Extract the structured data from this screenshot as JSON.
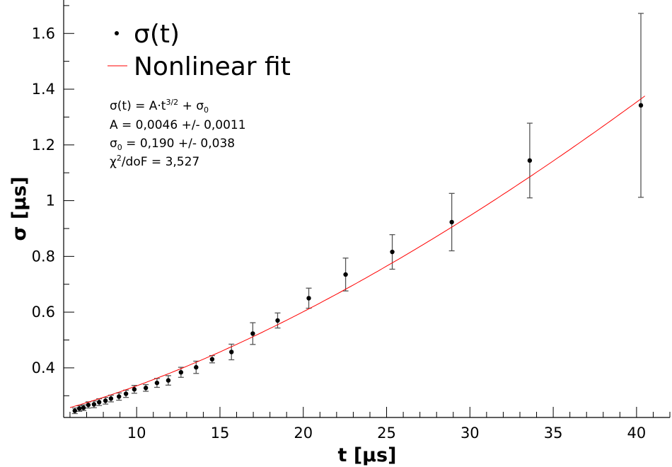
{
  "chart_data": {
    "type": "scatter",
    "xlabel": "t [μs]",
    "ylabel": "σ [μs]",
    "xlim": [
      5.62,
      42.0
    ],
    "ylim": [
      0.222,
      1.72
    ],
    "xticks": [
      10,
      15,
      20,
      25,
      30,
      35,
      40
    ],
    "xtick_labels": [
      "10",
      "15",
      "20",
      "25",
      "30",
      "35",
      "40"
    ],
    "yticks": [
      0.4,
      0.6,
      0.8,
      1.0,
      1.2,
      1.4,
      1.6
    ],
    "ytick_labels": [
      "0.4",
      "0.6",
      "0.8",
      "1",
      "1.2",
      "1.4",
      "1.6"
    ],
    "legend": {
      "placement": "top-left",
      "entries": [
        "σ(t)",
        "Nonlinear fit"
      ]
    },
    "series": [
      {
        "name": "σ(t)",
        "color": "#000000",
        "x": [
          6.29,
          6.56,
          6.81,
          7.1,
          7.44,
          7.75,
          8.13,
          8.46,
          8.94,
          9.36,
          9.86,
          10.55,
          11.22,
          11.9,
          12.66,
          13.57,
          14.53,
          15.69,
          16.97,
          18.46,
          20.33,
          22.54,
          25.34,
          28.91,
          33.59,
          40.26
        ],
        "y": [
          0.246,
          0.254,
          0.257,
          0.267,
          0.269,
          0.277,
          0.282,
          0.29,
          0.297,
          0.307,
          0.323,
          0.328,
          0.346,
          0.355,
          0.384,
          0.402,
          0.431,
          0.457,
          0.523,
          0.57,
          0.65,
          0.735,
          0.816,
          0.923,
          1.144,
          1.342
        ],
        "yerr": [
          0.01,
          0.01,
          0.01,
          0.011,
          0.012,
          0.012,
          0.012,
          0.012,
          0.013,
          0.013,
          0.014,
          0.012,
          0.016,
          0.017,
          0.018,
          0.022,
          0.013,
          0.028,
          0.039,
          0.027,
          0.036,
          0.059,
          0.062,
          0.103,
          0.134,
          0.33
        ]
      },
      {
        "name": "Nonlinear fit",
        "color": "#ff0000",
        "model": "A*t^1.5 + s0",
        "A": 0.0046,
        "s0": 0.19,
        "x_range": [
          6.0,
          40.5
        ]
      }
    ],
    "annotations": {
      "formula_main": "σ(t) = A·t",
      "formula_exp": "3/2",
      "formula_tail": " + σ",
      "formula_sub": "0",
      "line_A": "A = 0,0046 +/- 0,0011",
      "line_s0_a": "σ",
      "line_s0_sub": "0",
      "line_s0_b": " = 0,190 +/- 0,038",
      "line_chi_a": "χ",
      "line_chi_sup": "2",
      "line_chi_b": "/doF = 3,527"
    }
  }
}
